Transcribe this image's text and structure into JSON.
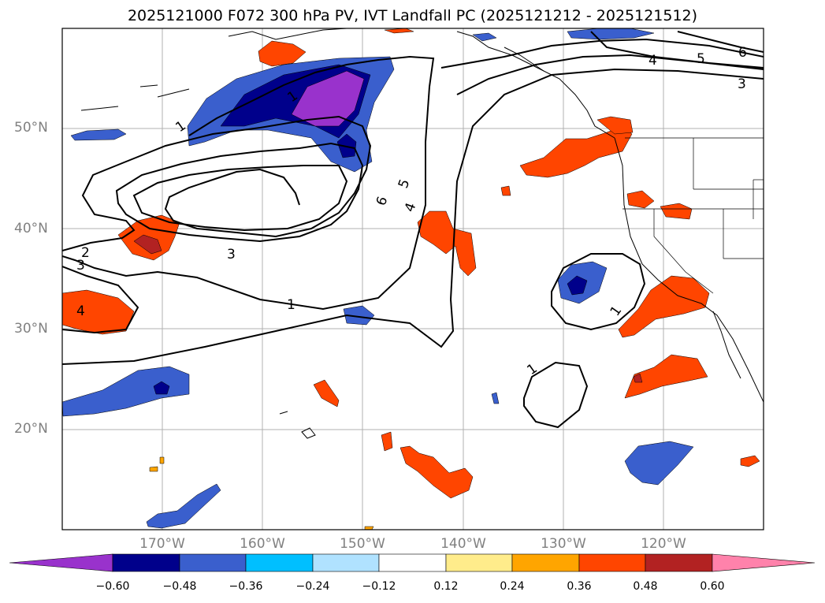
{
  "title": "2025121000 F072 300 hPa PV, IVT Landfall PC (2025121212 - 2025121512)",
  "lat_labels": [
    "50°N",
    "40°N",
    "30°N",
    "20°N"
  ],
  "lon_labels": [
    "170°W",
    "160°W",
    "150°W",
    "140°W",
    "130°W",
    "120°W"
  ],
  "contour_labels": [
    "1",
    "1",
    "1",
    "1",
    "1",
    "2",
    "3",
    "3",
    "4",
    "4",
    "5",
    "6",
    "3",
    "4",
    "5",
    "6"
  ],
  "colorbar": {
    "ticks": [
      "−0.60",
      "−0.48",
      "−0.36",
      "−0.24",
      "−0.12",
      "0.12",
      "0.24",
      "0.36",
      "0.48",
      "0.60"
    ],
    "colors": [
      "#9932cc",
      "#00008b",
      "#3a5fcd",
      "#00bfff",
      "#b0e2ff",
      "#ffffff",
      "#ffec8b",
      "#ffa500",
      "#ff4500",
      "#b22222",
      "#ff82ab"
    ]
  }
}
